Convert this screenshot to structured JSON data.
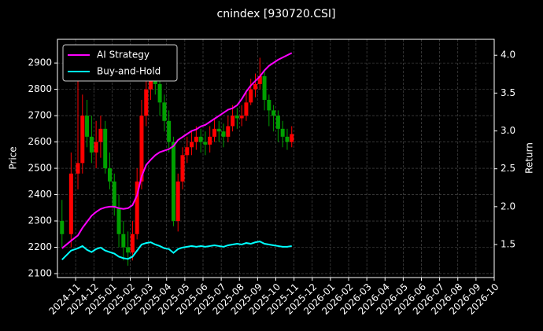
{
  "chart_data": {
    "type": "candlestick",
    "title": "cnindex [930720.CSI]",
    "ylabel": "Price",
    "y2label": "Return",
    "x": [
      "2024-10",
      "2024-10",
      "2024-11",
      "2024-11",
      "2024-11",
      "2024-11",
      "2024-12",
      "2024-12",
      "2024-12",
      "2024-12",
      "2025-01",
      "2025-01",
      "2025-01",
      "2025-01",
      "2025-02",
      "2025-02",
      "2025-02",
      "2025-02",
      "2025-03",
      "2025-03",
      "2025-03",
      "2025-03",
      "2025-04",
      "2025-04",
      "2025-04",
      "2025-04",
      "2025-05",
      "2025-05",
      "2025-05",
      "2025-05",
      "2025-06",
      "2025-06",
      "2025-06",
      "2025-06",
      "2025-07",
      "2025-07",
      "2025-07",
      "2025-07",
      "2025-08",
      "2025-08",
      "2025-08",
      "2025-08",
      "2025-09",
      "2025-09",
      "2025-09",
      "2025-09",
      "2025-10",
      "2025-10",
      "2025-10",
      "2025-10"
    ],
    "open": [
      2300,
      2250,
      2480,
      2520,
      2700,
      2620,
      2560,
      2600,
      2650,
      2500,
      2450,
      2350,
      2250,
      2200,
      2180,
      2250,
      2450,
      2700,
      2800,
      2850,
      2820,
      2750,
      2680,
      2600,
      2300,
      2450,
      2550,
      2580,
      2600,
      2620,
      2600,
      2590,
      2620,
      2650,
      2640,
      2620,
      2660,
      2700,
      2690,
      2700,
      2750,
      2800,
      2820,
      2850,
      2760,
      2720,
      2700,
      2650,
      2620,
      2600
    ],
    "high": [
      2380,
      2560,
      2850,
      2780,
      2760,
      2700,
      2680,
      2700,
      2680,
      2560,
      2480,
      2400,
      2300,
      2260,
      2300,
      2500,
      2760,
      2880,
      2900,
      2880,
      2860,
      2780,
      2720,
      2620,
      2480,
      2580,
      2620,
      2640,
      2660,
      2650,
      2640,
      2660,
      2690,
      2680,
      2670,
      2700,
      2740,
      2730,
      2740,
      2790,
      2840,
      2860,
      2920,
      2870,
      2780,
      2740,
      2720,
      2680,
      2650,
      2660
    ],
    "low": [
      2200,
      2200,
      2420,
      2480,
      2580,
      2520,
      2500,
      2540,
      2480,
      2420,
      2320,
      2200,
      2150,
      2130,
      2150,
      2230,
      2420,
      2660,
      2760,
      2780,
      2700,
      2640,
      2560,
      2280,
      2260,
      2420,
      2520,
      2550,
      2570,
      2560,
      2550,
      2560,
      2600,
      2600,
      2580,
      2600,
      2640,
      2650,
      2660,
      2680,
      2740,
      2770,
      2800,
      2720,
      2660,
      2640,
      2600,
      2580,
      2570,
      2580
    ],
    "close": [
      2250,
      2480,
      2520,
      2700,
      2620,
      2560,
      2600,
      2650,
      2500,
      2450,
      2350,
      2250,
      2200,
      2180,
      2250,
      2450,
      2700,
      2800,
      2850,
      2820,
      2750,
      2680,
      2600,
      2300,
      2450,
      2550,
      2580,
      2600,
      2620,
      2600,
      2590,
      2620,
      2650,
      2640,
      2620,
      2660,
      2700,
      2690,
      2700,
      2750,
      2800,
      2820,
      2850,
      2760,
      2720,
      2700,
      2650,
      2620,
      2600,
      2630
    ],
    "up_color": "#ff0000",
    "down_color": "#00a000",
    "series": [
      {
        "name": "AI Strategy",
        "color": "#ff00ff",
        "axis": "y2",
        "values": [
          1.45,
          1.55,
          1.62,
          1.72,
          1.8,
          1.88,
          1.93,
          1.97,
          1.99,
          2.0,
          2.0,
          1.98,
          1.97,
          1.98,
          2.02,
          2.15,
          2.4,
          2.55,
          2.62,
          2.68,
          2.72,
          2.74,
          2.76,
          2.8,
          2.88,
          2.92,
          2.96,
          3.0,
          3.02,
          3.06,
          3.08,
          3.12,
          3.16,
          3.2,
          3.24,
          3.28,
          3.3,
          3.34,
          3.42,
          3.52,
          3.6,
          3.66,
          3.72,
          3.8,
          3.86,
          3.9,
          3.94,
          3.97,
          4.0,
          4.03
        ]
      },
      {
        "name": "Buy-and-Hold",
        "color": "#00ffff",
        "axis": "y2",
        "values": [
          1.3,
          1.42,
          1.45,
          1.48,
          1.43,
          1.4,
          1.44,
          1.46,
          1.42,
          1.4,
          1.38,
          1.34,
          1.32,
          1.31,
          1.34,
          1.42,
          1.5,
          1.52,
          1.53,
          1.5,
          1.48,
          1.45,
          1.44,
          1.39,
          1.44,
          1.46,
          1.47,
          1.48,
          1.47,
          1.48,
          1.47,
          1.48,
          1.49,
          1.48,
          1.47,
          1.49,
          1.5,
          1.51,
          1.5,
          1.52,
          1.51,
          1.53,
          1.54,
          1.51,
          1.5,
          1.49,
          1.48,
          1.47,
          1.47,
          1.48
        ]
      }
    ],
    "xlim": [
      "2024-10",
      "2026-10"
    ],
    "xticks": [
      "2024-11",
      "2024-12",
      "2025-01",
      "2025-02",
      "2025-03",
      "2025-04",
      "2025-05",
      "2025-06",
      "2025-07",
      "2025-08",
      "2025-09",
      "2025-10",
      "2025-11",
      "2025-12",
      "2026-01",
      "2026-02",
      "2026-03",
      "2026-04",
      "2026-05",
      "2026-06",
      "2026-07",
      "2026-08",
      "2026-09",
      "2026-10"
    ],
    "ylim": [
      2085,
      2990
    ],
    "yticks": [
      2100,
      2200,
      2300,
      2400,
      2500,
      2600,
      2700,
      2800,
      2900
    ],
    "y2lim": [
      1.064,
      4.21
    ],
    "y2ticks": [
      1.5,
      {
        "value": 2,
        "label": "2.0"
      },
      2.5,
      {
        "value": 3,
        "label": "3.0"
      },
      3.5,
      {
        "value": 4,
        "label": "4.0"
      }
    ],
    "grid": true,
    "legend": "upper left"
  }
}
